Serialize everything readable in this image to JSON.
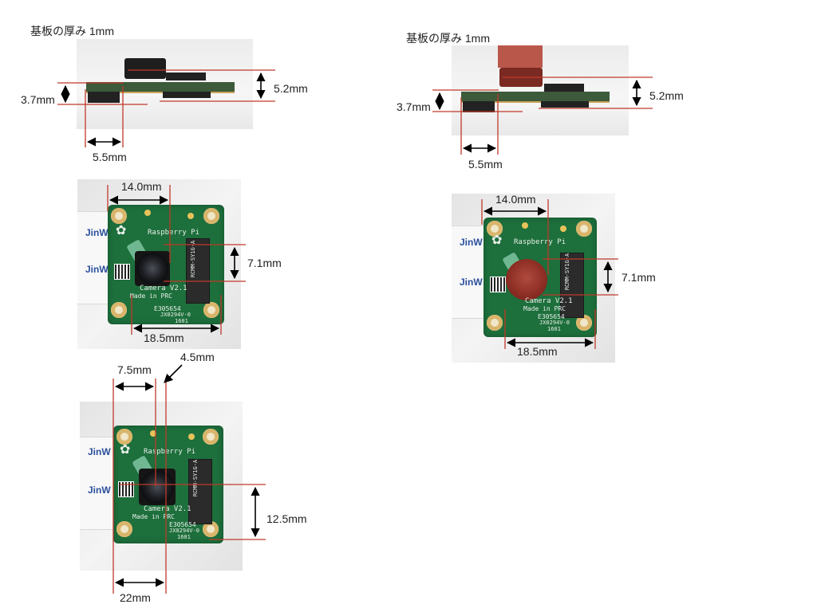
{
  "side_left": {
    "thickness_label": "基板の厚み 1mm",
    "dim_height": "5.2mm",
    "dim_lower": "3.7mm",
    "dim_offset": "5.5mm"
  },
  "side_right": {
    "thickness_label": "基板の厚み 1mm",
    "dim_height": "5.2mm",
    "dim_lower": "3.7mm",
    "dim_offset": "5.5mm"
  },
  "top_left": {
    "dim_top_width": "14.0mm",
    "dim_lens_height": "7.1mm",
    "dim_bottom_width": "18.5mm",
    "board": {
      "ribbon_text_1": "JinW",
      "ribbon_text_2": "JinW",
      "brand": "Raspberry Pi",
      "model": "Camera V2.1",
      "origin": "Made in PRC",
      "code1": "E305654",
      "code2": "JX0294V-0",
      "code3": "1601",
      "chip": "RCMM-SY1G-A"
    }
  },
  "top_right": {
    "dim_top_width": "14.0mm",
    "dim_lens_height": "7.1mm",
    "dim_bottom_width": "18.5mm",
    "board": {
      "ribbon_text_1": "JinW",
      "ribbon_text_2": "JinW",
      "brand": "Raspberry Pi",
      "model": "Camera V2.1",
      "origin": "Made in PRC",
      "code1": "E305654",
      "code2": "JX0294V-0",
      "code3": "1601",
      "chip": "RCMM-SY1G-A"
    }
  },
  "bottom": {
    "dim_left": "7.5mm",
    "dim_center": "4.5mm",
    "dim_vertical": "12.5mm",
    "dim_bottom": "22mm",
    "board": {
      "ribbon_text_1": "JinW",
      "ribbon_text_2": "JinW",
      "brand": "Raspberry Pi",
      "model": "Camera V2.1",
      "origin": "Made in PRC",
      "code1": "E305654",
      "code2": "JX0294V-0",
      "code3": "1601",
      "chip": "RCMM-SY1G-A"
    }
  },
  "colors": {
    "dimension_line": "#c0392b",
    "arrow": "#000000",
    "pcb": "#1d6f3c",
    "mount_pad": "#d9b56b"
  }
}
